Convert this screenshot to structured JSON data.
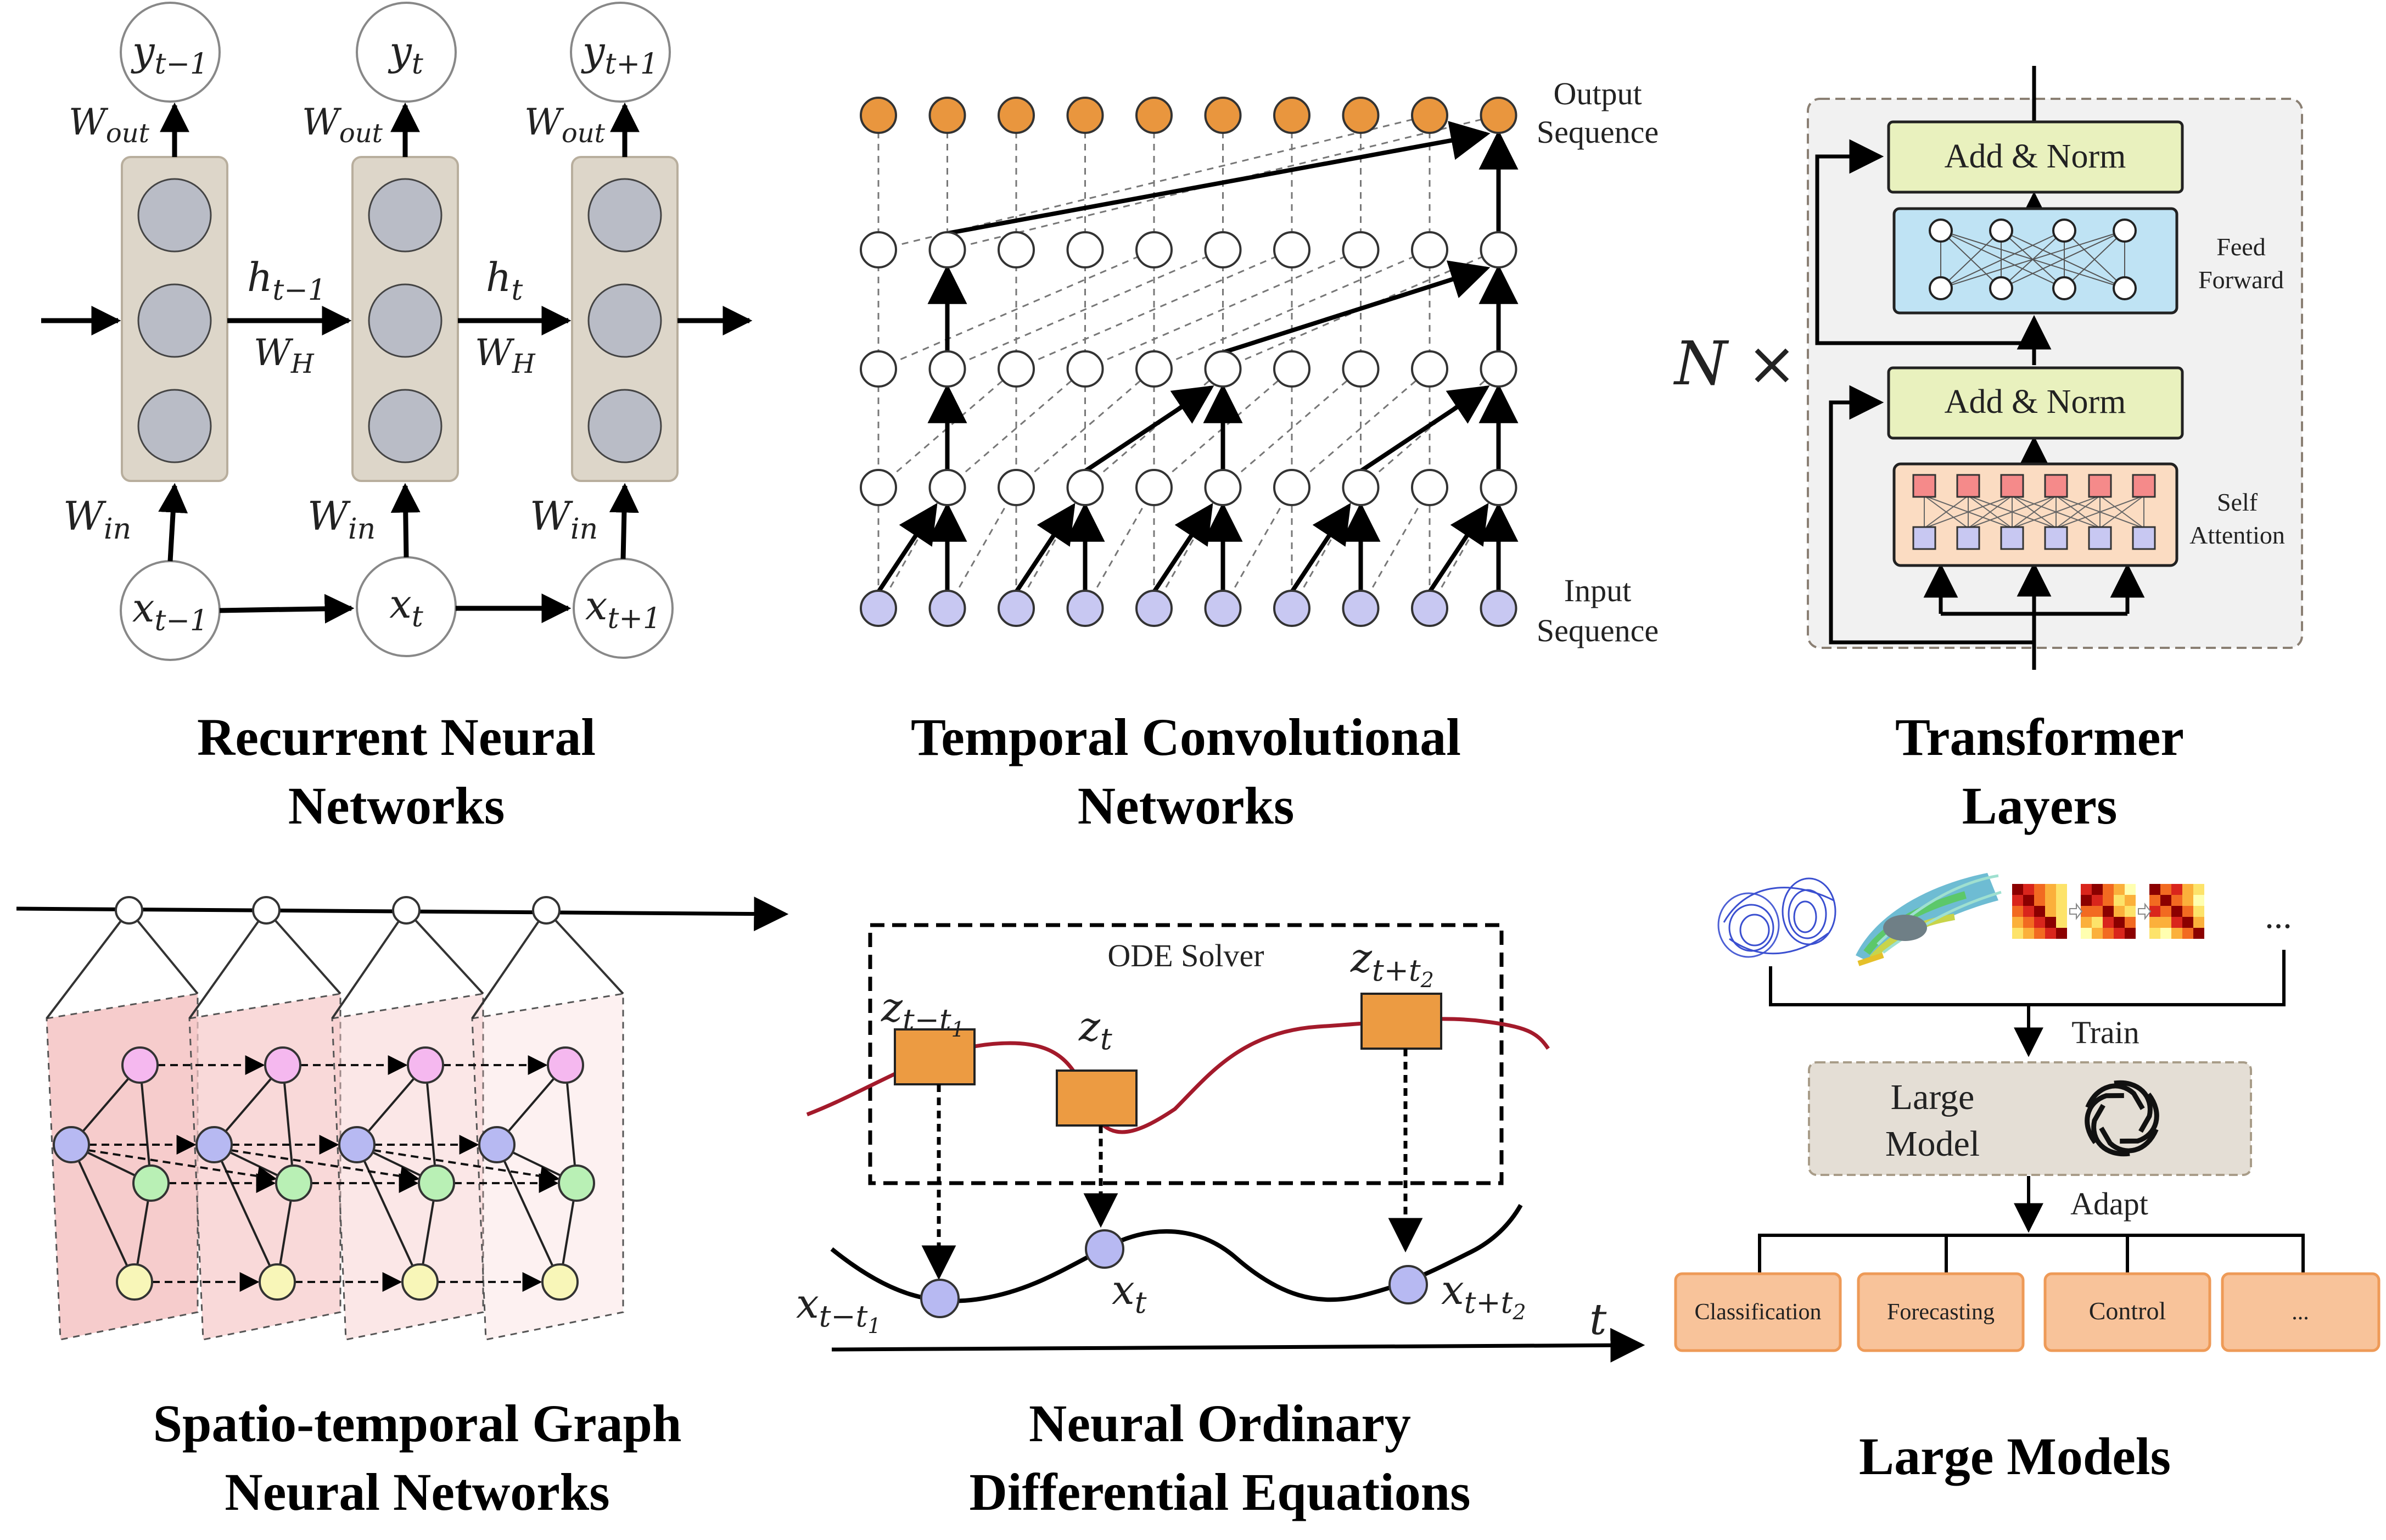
{
  "panels": {
    "rnn": {
      "caption_line1": "Recurrent Neural",
      "caption_line2": "Networks",
      "outputs": [
        "y_{t-1}",
        "y_t",
        "y_{t+1}"
      ],
      "inputs": [
        "x_{t-1}",
        "x_t",
        "x_{t+1}"
      ],
      "w_out": "W_out",
      "w_in": "W_in",
      "hidden_labels": [
        "h_{t-1}",
        "h_t"
      ],
      "w_h": "W_H"
    },
    "tcn": {
      "caption_line1": "Temporal Convolutional",
      "caption_line2": "Networks",
      "output_label_line1": "Output",
      "output_label_line2": "Sequence",
      "input_label_line1": "Input",
      "input_label_line2": "Sequence"
    },
    "transformer": {
      "caption_line1": "Transformer",
      "caption_line2": "Layers",
      "repeat_label": "N ×",
      "add_norm": "Add & Norm",
      "ff_line1": "Feed",
      "ff_line2": "Forward",
      "sa_line1": "Self",
      "sa_line2": "Attention"
    },
    "stgnn": {
      "caption_line1": "Spatio-temporal Graph",
      "caption_line2": "Neural Networks"
    },
    "node": {
      "caption_line1": "Neural Ordinary",
      "caption_line2": "Differential Equations",
      "solver_label": "ODE Solver",
      "latent_labels": [
        "z_{t-t1}",
        "z_t",
        "z_{t+t2}"
      ],
      "obs_labels": [
        "x_{t-t1}",
        "x_t",
        "x_{t+t2}"
      ],
      "time_label": "t"
    },
    "large_models": {
      "caption": "Large Models",
      "ellipsis": "...",
      "train_label": "Train",
      "model_line1": "Large",
      "model_line2": "Model",
      "adapt_label": "Adapt",
      "tasks": [
        "Classification",
        "Forecasting",
        "Control",
        "..."
      ]
    }
  },
  "colors": {
    "rnn_cell_fill": "#ddd6c9",
    "rnn_unit": "#b9bcc6",
    "tcn_output": "#e9963e",
    "tcn_input": "#c8c8f2",
    "add_norm": "#e9f1be",
    "feed_forward": "#bfe3f4",
    "self_attention": "#fbdcc2",
    "sa_top": "#f58a8a",
    "sa_bottom": "#c8c8f2",
    "graph_pink": "#f6c9c9",
    "node_magenta": "#f5b8ef",
    "node_blue": "#b7b9f2",
    "node_green": "#b9f0b5",
    "node_yellow": "#f8f6b8",
    "ode_box": "#ec9b42",
    "ode_curve": "#a31a2b",
    "large_model_box": "#e4ded5",
    "task_box": "#f8c39a",
    "task_border": "#ee9a57"
  }
}
